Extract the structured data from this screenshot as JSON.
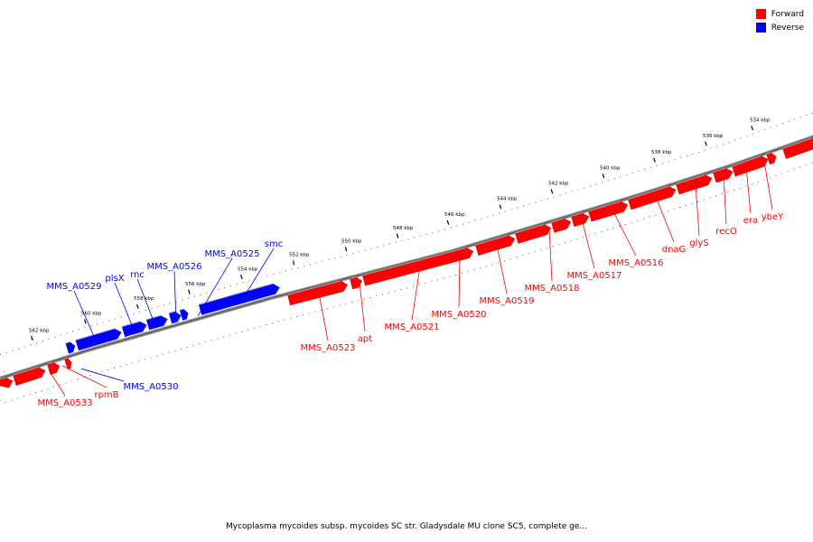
{
  "legend": {
    "forward_label": "Forward",
    "reverse_label": "Reverse",
    "forward_color": "#ff0000",
    "reverse_color": "#0000ff"
  },
  "caption": "Mycoplasma mycoides subsp. mycoides SC str. Gladysdale MU clone SC5, complete ge...",
  "ticks": [
    "534 kbp",
    "536 kbp",
    "538 kbp",
    "540 kbp",
    "542 kbp",
    "544 kbp",
    "546 kbp",
    "548 kbp",
    "550 kbp",
    "552 kbp",
    "554 kbp",
    "556 kbp",
    "558 kbp",
    "560 kbp",
    "562 kbp"
  ],
  "genes": {
    "forward": [
      "ybeY",
      "era",
      "recO",
      "glyS",
      "dnaG",
      "MMS_A0516",
      "MMS_A0517",
      "MMS_A0518",
      "MMS_A0519",
      "MMS_A0520",
      "MMS_A0521",
      "apt",
      "MMS_A0523",
      "rpmB",
      "MMS_A0533"
    ],
    "reverse": [
      "smc",
      "MMS_A0525",
      "MMS_A0526",
      "rnc",
      "plsX",
      "MMS_A0529",
      "MMS_A0530"
    ]
  }
}
